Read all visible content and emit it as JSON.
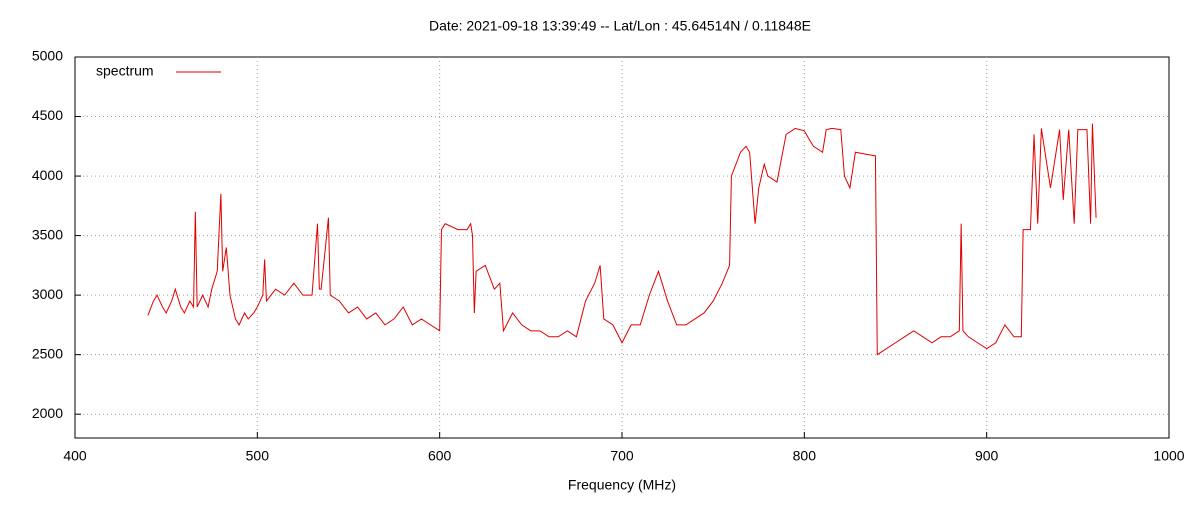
{
  "chart_data": {
    "type": "line",
    "title": "Date: 2021-09-18 13:39:49  --  Lat/Lon : 45.64514N / 0.11848E",
    "x_label": "Frequency (MHz)",
    "xlim": [
      400,
      1000
    ],
    "xticks": [
      400,
      500,
      600,
      700,
      800,
      900,
      1000
    ],
    "ylim": [
      1800,
      5000
    ],
    "yticks": [
      2000,
      2500,
      3000,
      3500,
      4000,
      4500,
      5000
    ],
    "grid": true,
    "legend": "top-left",
    "x": [
      440,
      443,
      445,
      448,
      450,
      453,
      455,
      458,
      460,
      463,
      465,
      466,
      467,
      470,
      473,
      475,
      478,
      480,
      481,
      483,
      485,
      488,
      490,
      493,
      495,
      498,
      500,
      503,
      504,
      505,
      510,
      515,
      520,
      525,
      530,
      533,
      534,
      535,
      539,
      540,
      545,
      550,
      555,
      560,
      565,
      570,
      575,
      580,
      585,
      590,
      595,
      600,
      601,
      603,
      610,
      615,
      617,
      618,
      619,
      620,
      625,
      630,
      633,
      635,
      640,
      645,
      650,
      655,
      660,
      665,
      670,
      675,
      680,
      685,
      688,
      690,
      695,
      700,
      705,
      710,
      715,
      720,
      725,
      730,
      735,
      740,
      745,
      750,
      755,
      759,
      760,
      765,
      768,
      770,
      773,
      775,
      778,
      780,
      785,
      790,
      795,
      800,
      803,
      805,
      810,
      812,
      815,
      820,
      822,
      825,
      828,
      835,
      839,
      840,
      845,
      850,
      855,
      860,
      865,
      870,
      875,
      880,
      885,
      886,
      887,
      890,
      895,
      900,
      905,
      910,
      915,
      919,
      920,
      924,
      926,
      928,
      930,
      935,
      940,
      942,
      945,
      948,
      950,
      955,
      957,
      958,
      960
    ],
    "series": [
      {
        "name": "spectrum",
        "color": "#e00000",
        "values": [
          2830,
          2950,
          3000,
          2900,
          2850,
          2950,
          3050,
          2900,
          2850,
          2950,
          2900,
          3700,
          2900,
          3000,
          2900,
          3050,
          3200,
          3850,
          3200,
          3400,
          3000,
          2800,
          2750,
          2850,
          2800,
          2850,
          2900,
          3000,
          3300,
          2950,
          3050,
          3000,
          3100,
          3000,
          3000,
          3600,
          3050,
          3050,
          3650,
          3000,
          2950,
          2850,
          2900,
          2800,
          2850,
          2750,
          2800,
          2900,
          2750,
          2800,
          2750,
          2700,
          3550,
          3600,
          3550,
          3550,
          3600,
          3500,
          2850,
          3200,
          3250,
          3050,
          3100,
          2700,
          2850,
          2750,
          2700,
          2700,
          2650,
          2650,
          2700,
          2650,
          2950,
          3100,
          3250,
          2800,
          2750,
          2600,
          2750,
          2750,
          3000,
          3200,
          2950,
          2750,
          2750,
          2800,
          2850,
          2950,
          3100,
          3250,
          4000,
          4200,
          4250,
          4200,
          3600,
          3900,
          4100,
          4000,
          3950,
          4350,
          4400,
          4380,
          4300,
          4250,
          4200,
          4390,
          4400,
          4390,
          4000,
          3900,
          4200,
          4180,
          4170,
          2500,
          2550,
          2600,
          2650,
          2700,
          2650,
          2600,
          2650,
          2650,
          2700,
          3600,
          2700,
          2650,
          2600,
          2550,
          2600,
          2750,
          2650,
          2650,
          3550,
          3550,
          4350,
          3600,
          4400,
          3900,
          4390,
          3800,
          4390,
          3600,
          4390,
          4390,
          3600,
          4440,
          3650
        ]
      }
    ]
  }
}
